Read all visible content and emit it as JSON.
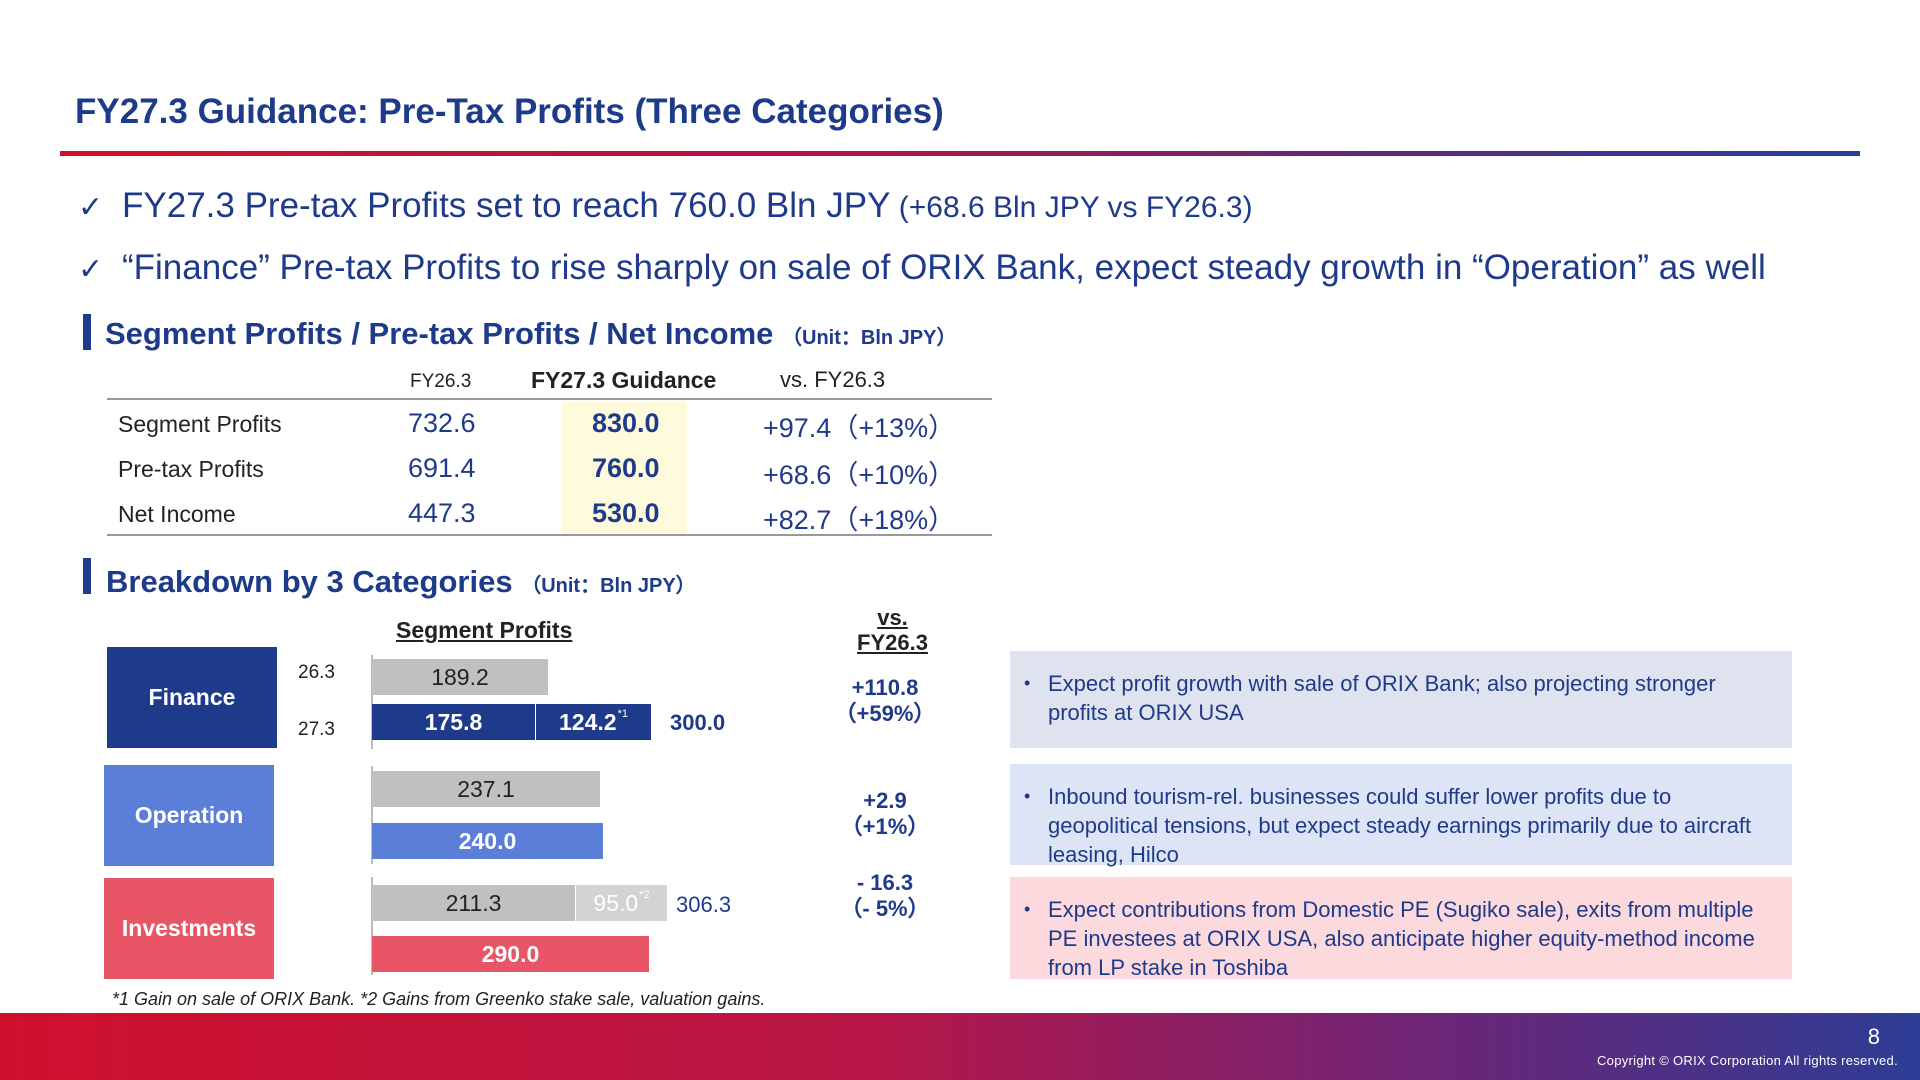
{
  "slide": {
    "title": "FY27.3 Guidance: Pre-Tax Profits (Three Categories)",
    "bullets": [
      {
        "check": "✓",
        "main": "FY27.3 Pre-tax Profits set to reach 760.0 Bln JPY",
        "sub": " (+68.6 Bln JPY vs FY26.3)"
      },
      {
        "check": "✓",
        "main": "“Finance” Pre-tax Profits to rise sharply on sale of ORIX Bank, expect steady growth in “Operation” as well",
        "sub": ""
      }
    ]
  },
  "summary": {
    "heading": "Segment Profits / Pre-tax Profits / Net Income",
    "unit": "（Unit：Bln JPY）",
    "columns": [
      "FY26.3",
      "FY27.3 Guidance",
      "vs. FY26.3"
    ],
    "rows": [
      {
        "label": "Segment Profits",
        "fy26": "732.6",
        "fy27": "830.0",
        "diff": "+97.4",
        "pct": "（+13%）"
      },
      {
        "label": "Pre-tax Profits",
        "fy26": "691.4",
        "fy27": "760.0",
        "diff": "+68.6",
        "pct": "（+10%）"
      },
      {
        "label": "Net Income",
        "fy26": "447.3",
        "fy27": "530.0",
        "diff": "+82.7",
        "pct": "（+18%）"
      }
    ]
  },
  "breakdown": {
    "heading": "Breakdown by 3 Categories",
    "unit": "（Unit：Bln JPY）",
    "segment_header": "Segment Profits",
    "vs_header_line1": "vs.",
    "vs_header_line2": "FY26.3",
    "finance": {
      "label": "Finance",
      "year_prev": "26.3",
      "year_next": "27.3",
      "prev_value": "189.2",
      "next_base": "175.8",
      "next_gain": "124.2",
      "next_gain_note": "*1",
      "next_total": "300.0",
      "vs_diff": "+110.8",
      "vs_pct": "（+59%）",
      "note": "Expect profit growth with sale of ORIX Bank; also projecting stronger profits at ORIX USA"
    },
    "operation": {
      "label": "Operation",
      "prev_value": "237.1",
      "next_value": "240.0",
      "vs_diff": "+2.9",
      "vs_pct": "（+1%）",
      "note": "Inbound tourism-rel. businesses could suffer lower profits due to geopolitical tensions, but expect steady earnings primarily due to aircraft leasing, Hilco"
    },
    "investments": {
      "label": "Investments",
      "prev_base": "211.3",
      "prev_gain": "95.0",
      "prev_gain_note": "*2",
      "prev_total": "306.3",
      "next_value": "290.0",
      "vs_diff": "- 16.3",
      "vs_pct": "（- 5%）",
      "note": "Expect contributions from Domestic PE (Sugiko sale), exits from multiple PE investees at ORIX USA, also anticipate higher equity-method income from LP stake in Toshiba"
    },
    "bullet_symbol": "•",
    "footnote": "*1 Gain on sale of ORIX Bank. *2 Gains from Greenko stake sale, valuation gains."
  },
  "footer": {
    "page_number": "8",
    "copyright": "Copyright © ORIX Corporation All rights reserved."
  },
  "colors": {
    "navy": "#1e3a8a",
    "operation_blue": "#5b7ed8",
    "investments_red": "#e85566",
    "guidance_highlight": "#fdfbdc"
  }
}
